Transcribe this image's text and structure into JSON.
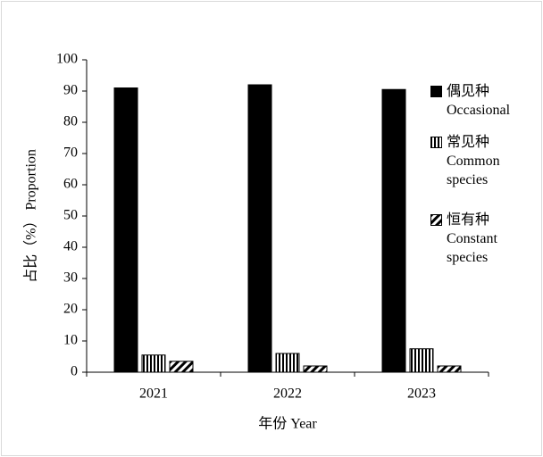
{
  "chart_data": {
    "type": "bar",
    "x_label": "年份 Year",
    "y_label": "占比（%） Proportion",
    "categories": [
      "2021",
      "2022",
      "2023"
    ],
    "series": [
      {
        "name": "偶见种 Occasional",
        "color": "#000000",
        "pattern": "solid",
        "values": [
          91,
          92,
          90.5
        ]
      },
      {
        "name": "常见种 Common species",
        "color": "#000000",
        "pattern": "vertical",
        "values": [
          5.5,
          6,
          7.5
        ]
      },
      {
        "name": "恒有种 Constant species",
        "color": "#000000",
        "pattern": "diagonal",
        "values": [
          3.5,
          2,
          2
        ]
      }
    ],
    "ylim": [
      0,
      100
    ],
    "yticks": [
      0,
      10,
      20,
      30,
      40,
      50,
      60,
      70,
      80,
      90,
      100
    ]
  }
}
